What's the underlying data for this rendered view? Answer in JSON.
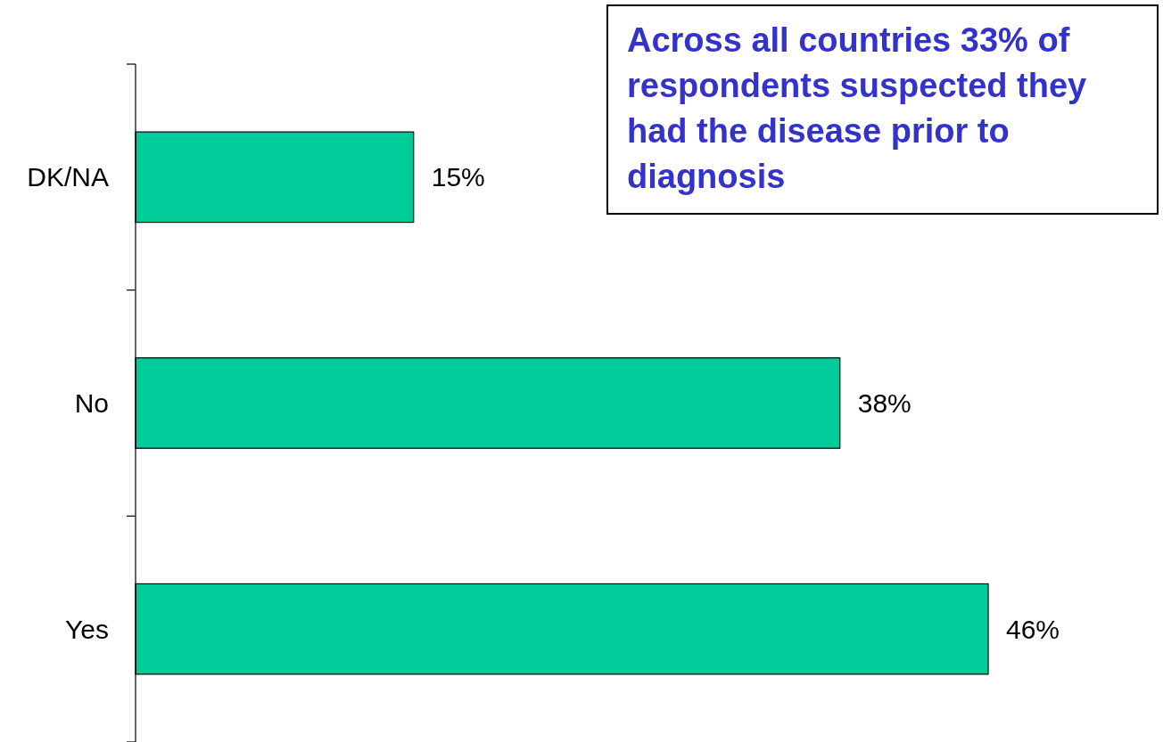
{
  "chart_data": {
    "type": "bar",
    "orientation": "horizontal",
    "categories": [
      "DK/NA",
      "No",
      "Yes"
    ],
    "values": [
      15,
      38,
      46
    ],
    "color": "#00cc99",
    "value_labels": [
      "15%",
      "38%",
      "46%"
    ],
    "annotations": [
      "Across all countries 33% of respondents suspected they had the disease prior to diagnosis"
    ]
  }
}
